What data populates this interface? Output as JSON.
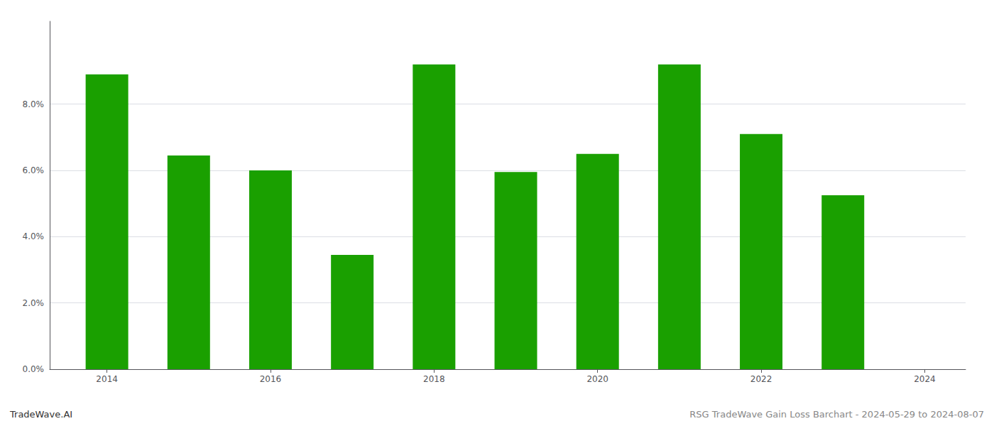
{
  "chart_data": {
    "type": "bar",
    "x": [
      2014,
      2015,
      2016,
      2017,
      2018,
      2019,
      2020,
      2021,
      2022,
      2023
    ],
    "values": [
      0.089,
      0.0645,
      0.06,
      0.0345,
      0.092,
      0.0595,
      0.065,
      0.092,
      0.071,
      0.0525
    ],
    "color": "#1aA000",
    "xlim": [
      2013.3,
      2024.5
    ],
    "xticks": [
      2014,
      2016,
      2018,
      2020,
      2022,
      2024
    ],
    "ylim": [
      0,
      0.105
    ],
    "yticks": [
      {
        "value": 0.0,
        "label": "0.0%"
      },
      {
        "value": 0.02,
        "label": "2.0%"
      },
      {
        "value": 0.04,
        "label": "4.0%"
      },
      {
        "value": 0.06,
        "label": "6.0%"
      },
      {
        "value": 0.08,
        "label": "8.0%"
      }
    ],
    "grid": true,
    "annotations": [
      "TradeWave.AI",
      "RSG TradeWave Gain Loss Barchart - 2024-05-29 to 2024-08-07"
    ]
  }
}
